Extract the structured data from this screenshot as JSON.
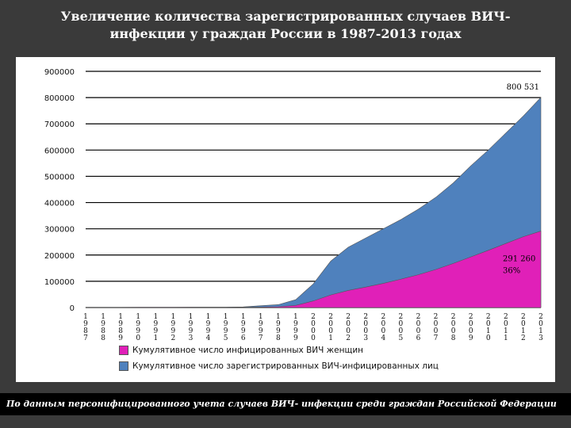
{
  "title": "Увеличение количества зарегистрированных случаев ВИЧ-инфекции у граждан России в 1987-2013 годах",
  "footer": "По данным персонифицированного учета случаев ВИЧ- инфекции среди граждан Российской Федерации",
  "colors": {
    "total": "#4f81bd",
    "women": "#e020b8",
    "background": "#3a3a3a"
  },
  "chart_data": {
    "type": "area",
    "ylabel": "",
    "ylim": [
      0,
      900000
    ],
    "yticks": [
      "900000",
      "800000",
      "700000",
      "600000",
      "500000",
      "400000",
      "300000",
      "200000",
      "100000",
      "0"
    ],
    "x_ticks": [
      [
        "1",
        "9",
        "8",
        "7"
      ],
      [
        "1",
        "9",
        "8",
        "8"
      ],
      [
        "1",
        "9",
        "8",
        "9"
      ],
      [
        "1",
        "9",
        "9",
        "0"
      ],
      [
        "1",
        "9",
        "9",
        "1"
      ],
      [
        "1",
        "9",
        "9",
        "2"
      ],
      [
        "1",
        "9",
        "9",
        "3"
      ],
      [
        "1",
        "9",
        "9",
        "4"
      ],
      [
        "1",
        "9",
        "9",
        "5"
      ],
      [
        "1",
        "9",
        "9",
        "6"
      ],
      [
        "1",
        "9",
        "9",
        "7"
      ],
      [
        "1",
        "9",
        "9",
        "8"
      ],
      [
        "1",
        "9",
        "9",
        "9"
      ],
      [
        "2",
        "0",
        "0",
        "0"
      ],
      [
        "2",
        "0",
        "0",
        "1"
      ],
      [
        "2",
        "0",
        "0",
        "2"
      ],
      [
        "2",
        "0",
        "0",
        "3"
      ],
      [
        "2",
        "0",
        "0",
        "4"
      ],
      [
        "2",
        "0",
        "0",
        "5"
      ],
      [
        "2",
        "0",
        "0",
        "6"
      ],
      [
        "2",
        "0",
        "0",
        "7"
      ],
      [
        "2",
        "0",
        "0",
        "8"
      ],
      [
        "2",
        "0",
        "0",
        "9"
      ],
      [
        "2",
        "0",
        "1",
        "0"
      ],
      [
        "2",
        "0",
        "1",
        "1"
      ],
      [
        "2",
        "0",
        "1",
        "2"
      ],
      [
        "2",
        "0",
        "1",
        "3"
      ]
    ],
    "x": [
      1987,
      1988,
      1989,
      1990,
      1991,
      1992,
      1993,
      1994,
      1995,
      1996,
      1997,
      1998,
      1999,
      2000,
      2001,
      2002,
      2003,
      2004,
      2005,
      2006,
      2007,
      2008,
      2009,
      2010,
      2011,
      2012,
      2013
    ],
    "series": [
      {
        "name": "Кумулятивное число зарегистрированных ВИЧ-инфицированных лиц",
        "values": [
          100,
          200,
          600,
          900,
          1000,
          1100,
          1200,
          1300,
          1500,
          2600,
          7000,
          11000,
          30000,
          90000,
          177000,
          230000,
          265000,
          300000,
          335000,
          375000,
          420000,
          475000,
          540000,
          600000,
          665000,
          730000,
          800531
        ]
      },
      {
        "name": "Кумулятивное число инфицированных ВИЧ женщин",
        "values": [
          0,
          50,
          150,
          250,
          300,
          350,
          400,
          450,
          500,
          800,
          1800,
          3000,
          8000,
          25000,
          48000,
          65000,
          78000,
          92000,
          108000,
          125000,
          145000,
          168000,
          193000,
          218000,
          244000,
          270000,
          291260
        ]
      }
    ],
    "annotations": [
      {
        "x": 2013,
        "y": 800531,
        "text": "800 531"
      },
      {
        "x": 2013,
        "y": 291260,
        "text": "291 260",
        "text2": "36%"
      }
    ]
  }
}
